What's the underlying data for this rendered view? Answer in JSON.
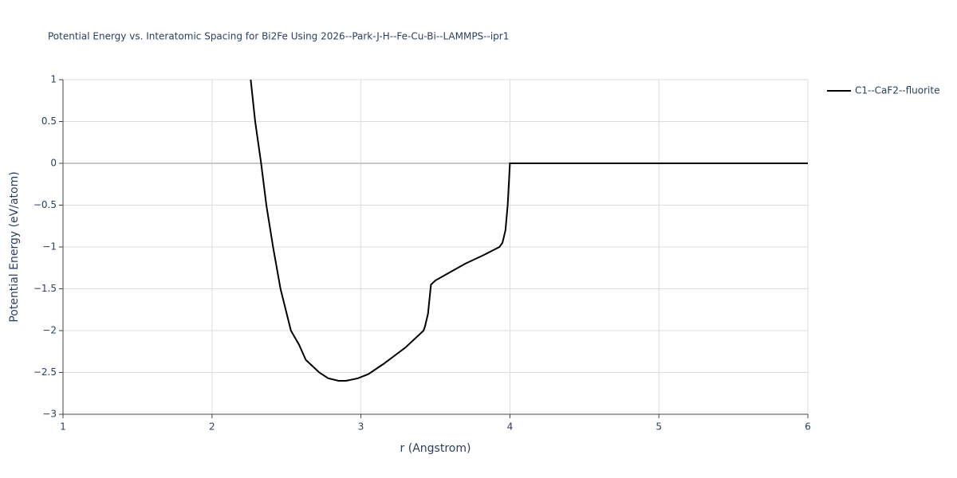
{
  "chart_data": {
    "type": "line",
    "title": "Potential Energy vs. Interatomic Spacing for Bi2Fe Using 2026--Park-J-H--Fe-Cu-Bi--LAMMPS--ipr1",
    "x_label": "r (Angstrom)",
    "y_label": "Potential Energy (eV/atom)",
    "xlim": [
      1,
      6
    ],
    "ylim": [
      -3,
      1
    ],
    "xticks": [
      1,
      2,
      3,
      4,
      5,
      6
    ],
    "yticks": [
      {
        "value": -3,
        "label": "−3"
      },
      {
        "value": -2.5,
        "label": "−2.5"
      },
      {
        "value": -2,
        "label": "−2"
      },
      {
        "value": -1.5,
        "label": "−1.5"
      },
      {
        "value": -1,
        "label": "−1"
      },
      {
        "value": -0.5,
        "label": "−0.5"
      },
      0,
      0.5,
      1
    ],
    "grid": true,
    "legend_position": "top-right",
    "series": [
      {
        "name": "C1--CaF2--fluorite",
        "color": "#000000",
        "x": [
          2.26,
          2.29,
          2.33,
          2.365,
          2.41,
          2.46,
          2.53,
          2.585,
          2.63,
          2.72,
          2.78,
          2.85,
          2.9,
          2.98,
          3.05,
          3.15,
          3.3,
          3.42,
          3.43,
          3.45,
          3.47,
          3.5,
          3.6,
          3.7,
          3.82,
          3.93,
          3.95,
          3.97,
          3.985,
          4.0,
          6.0
        ],
        "values": [
          1,
          0.5,
          0,
          -0.5,
          -1,
          -1.5,
          -2,
          -2.17,
          -2.35,
          -2.5,
          -2.57,
          -2.6,
          -2.6,
          -2.57,
          -2.52,
          -2.4,
          -2.2,
          -2.0,
          -1.95,
          -1.8,
          -1.45,
          -1.4,
          -1.3,
          -1.2,
          -1.1,
          -1.0,
          -0.95,
          -0.8,
          -0.5,
          0,
          0
        ]
      }
    ]
  }
}
